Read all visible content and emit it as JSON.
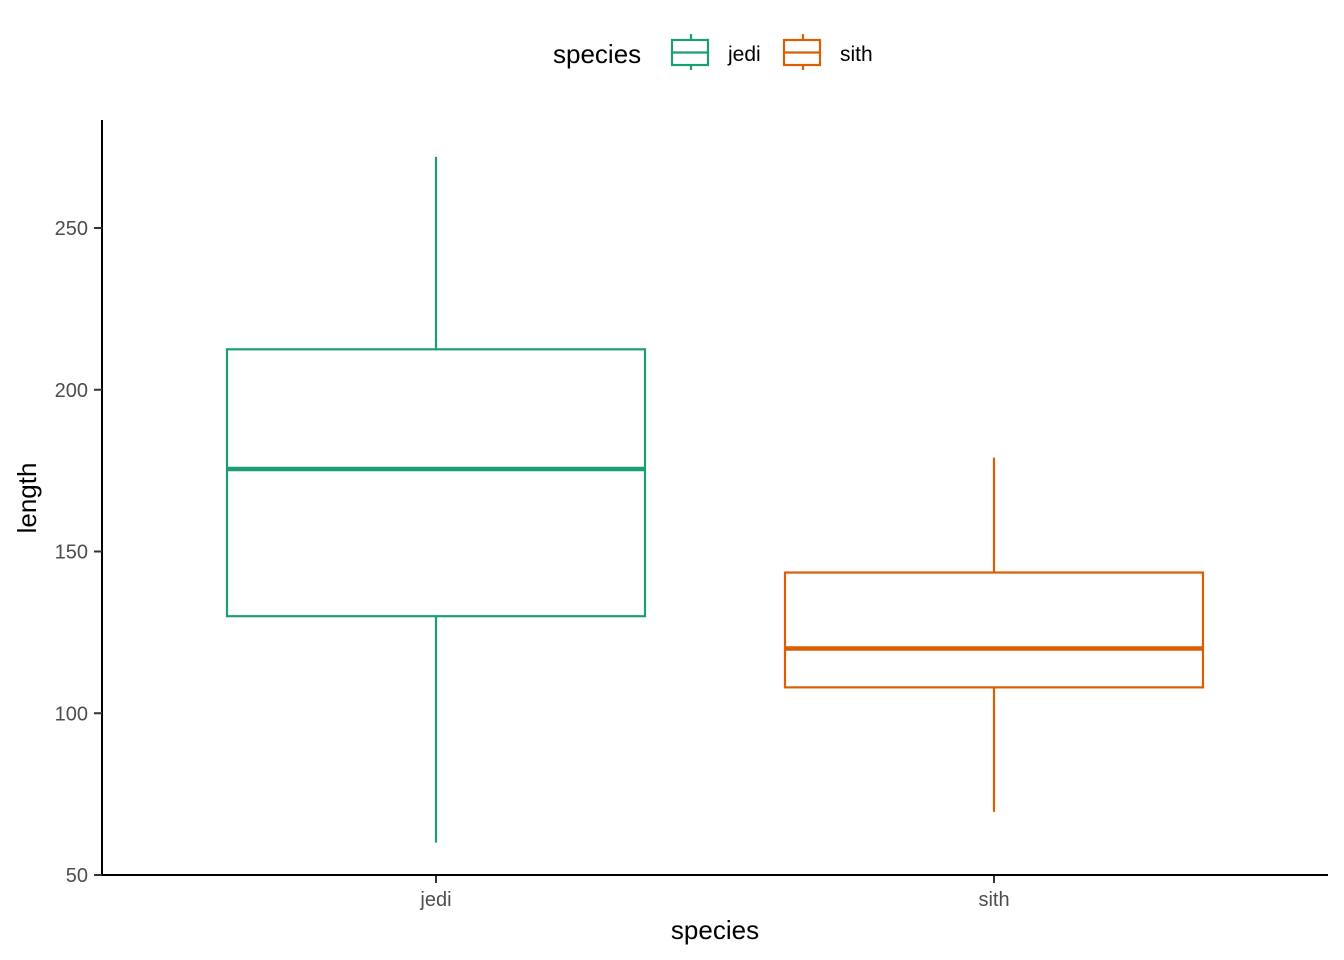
{
  "chart_data": {
    "type": "boxplot",
    "xlabel": "species",
    "ylabel": "length",
    "ylim": [
      50,
      280
    ],
    "yticks": [
      50,
      100,
      150,
      200,
      250
    ],
    "grid": false,
    "legend": {
      "title": "species",
      "position": "top",
      "entries": [
        "jedi",
        "sith"
      ]
    },
    "categories": [
      "jedi",
      "sith"
    ],
    "series": [
      {
        "name": "jedi",
        "color": "#1B9E77",
        "min": 60,
        "q1": 130,
        "median": 175.5,
        "q3": 212.5,
        "max": 272
      },
      {
        "name": "sith",
        "color": "#D95F02",
        "min": 69.5,
        "q1": 108,
        "median": 120,
        "q3": 143.5,
        "max": 179
      }
    ]
  }
}
